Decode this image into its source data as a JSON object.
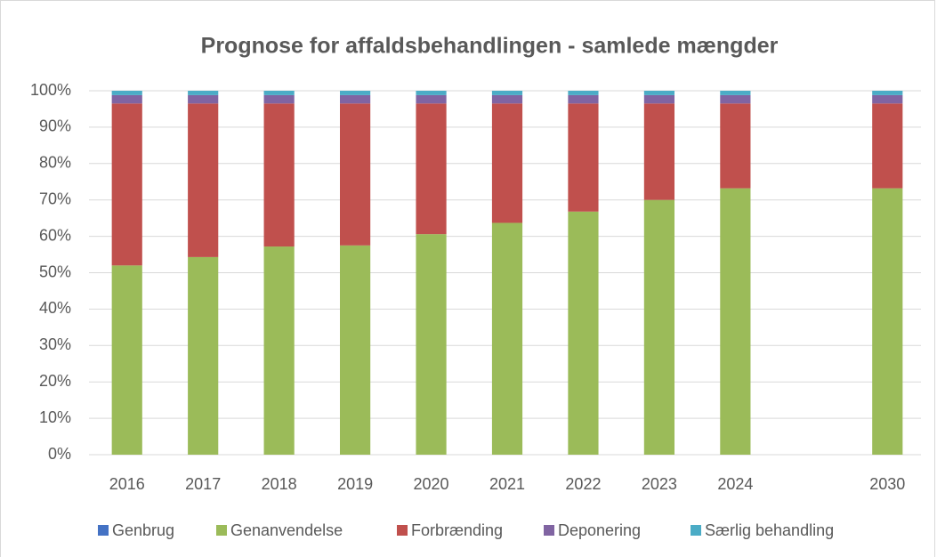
{
  "chart_data": {
    "type": "stacked_bar",
    "title": "Prognose for affaldsbehandlingen - samlede mængder",
    "categories": [
      "2016",
      "2017",
      "2018",
      "2019",
      "2020",
      "2021",
      "2022",
      "2023",
      "2024",
      null,
      "2030"
    ],
    "series": [
      {
        "name": "Genbrug",
        "color": "#4472c4",
        "values": [
          0,
          0,
          0,
          0,
          0,
          0,
          0,
          0,
          0,
          null,
          0
        ]
      },
      {
        "name": "Genanvendelse",
        "color": "#9bbb59",
        "values": [
          52,
          54.3,
          57.2,
          57.5,
          60.6,
          63.7,
          66.8,
          70,
          73.2,
          null,
          73.2
        ]
      },
      {
        "name": "Forbrænding",
        "color": "#c0504d",
        "values": [
          44.5,
          42.2,
          39.3,
          39,
          35.9,
          32.8,
          29.7,
          26.5,
          23.3,
          null,
          23.3
        ]
      },
      {
        "name": "Deponering",
        "color": "#8064a2",
        "values": [
          2.3,
          2.3,
          2.3,
          2.3,
          2.3,
          2.3,
          2.3,
          2.3,
          2.3,
          null,
          2.3
        ]
      },
      {
        "name": "Særlig behandling",
        "color": "#4bacc6",
        "values": [
          1.2,
          1.2,
          1.2,
          1.2,
          1.2,
          1.2,
          1.2,
          1.2,
          1.2,
          null,
          1.2
        ]
      }
    ],
    "ylim": [
      0,
      100
    ],
    "yticks": [
      {
        "value": 0,
        "label": "0%"
      },
      {
        "value": 10,
        "label": "10%"
      },
      {
        "value": 20,
        "label": "20%"
      },
      {
        "value": 30,
        "label": "30%"
      },
      {
        "value": 40,
        "label": "40%"
      },
      {
        "value": 50,
        "label": "50%"
      },
      {
        "value": 60,
        "label": "60%"
      },
      {
        "value": 70,
        "label": "70%"
      },
      {
        "value": 80,
        "label": "80%"
      },
      {
        "value": 90,
        "label": "90%"
      },
      {
        "value": 100,
        "label": "100%"
      }
    ],
    "grid": true,
    "legend": "bottom"
  }
}
